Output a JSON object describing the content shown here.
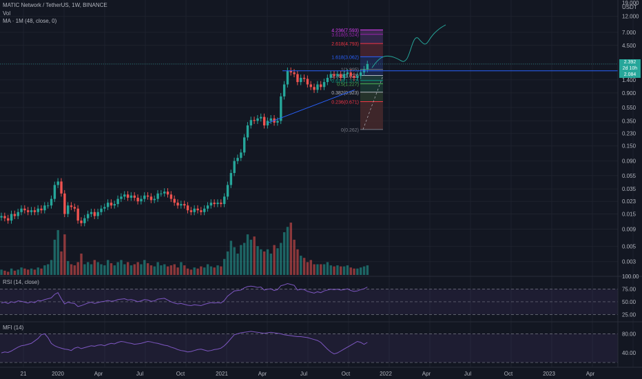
{
  "header": {
    "symbol_line": "MATIC Network / TetherUS, 1W, BINANCE",
    "vol_label": "Vol",
    "ma_label": "MA · 1M (48, close, 0)"
  },
  "price_axis": {
    "currency": "USDT",
    "ticks": [
      "19.000",
      "12.000",
      "7.000",
      "4.500",
      "2.392",
      "1.400",
      "0.900",
      "0.550",
      "0.350",
      "0.230",
      "0.150",
      "0.090",
      "0.055",
      "0.035",
      "0.023",
      "0.015",
      "0.009",
      "0.005",
      "0.003"
    ],
    "last_price": "2.392",
    "countdown": "2d 10h",
    "ma_price": "2.084"
  },
  "time_axis": {
    "labels": [
      "21",
      "2020",
      "Apr",
      "Jul",
      "Oct",
      "2021",
      "Apr",
      "Jul",
      "Oct",
      "2022",
      "Apr",
      "Jul",
      "Oct",
      "2023",
      "Apr"
    ]
  },
  "fib_levels": [
    {
      "label": "4.236(7.593)",
      "color": "#e040fb"
    },
    {
      "label": "3.618(6.524)",
      "color": "#9c27b0"
    },
    {
      "label": "2.618(4.793)",
      "color": "#f23645"
    },
    {
      "label": "1.618(3.062)",
      "color": "#2962ff"
    },
    {
      "label": "1(1.995)",
      "color": "#787b86"
    },
    {
      "label": "0.786(1.623)",
      "color": "#b2b5be"
    },
    {
      "label": "0.618(1.372)",
      "color": "#089981"
    },
    {
      "label": "0.5(1.227)",
      "color": "#4caf50"
    },
    {
      "label": "0.382(0.923)",
      "color": "#b2b5be"
    },
    {
      "label": "0.236(0.671)",
      "color": "#f23645"
    },
    {
      "label": "0(0.262)",
      "color": "#787b86"
    }
  ],
  "rsi": {
    "label": "RSI (14, close)",
    "ticks": [
      "100.00",
      "75.00",
      "50.00",
      "25.00"
    ]
  },
  "mfi": {
    "label": "MFI (14)",
    "ticks": [
      "80.00",
      "40.00"
    ]
  },
  "chart_data": {
    "type": "candlestick",
    "title": "MATIC Network / TetherUS, 1W, BINANCE",
    "scale": "log",
    "ylim": [
      0.002,
      19
    ],
    "colors": {
      "up": "#26a69a",
      "down": "#ef5350",
      "fib_blue": "#2962ff",
      "rsi": "#7e57c2"
    },
    "close": [
      0.014,
      0.013,
      0.012,
      0.015,
      0.014,
      0.016,
      0.018,
      0.017,
      0.016,
      0.017,
      0.016,
      0.018,
      0.017,
      0.02,
      0.02,
      0.025,
      0.04,
      0.045,
      0.03,
      0.015,
      0.02,
      0.019,
      0.018,
      0.012,
      0.011,
      0.013,
      0.015,
      0.016,
      0.014,
      0.016,
      0.018,
      0.019,
      0.022,
      0.02,
      0.021,
      0.025,
      0.027,
      0.029,
      0.026,
      0.028,
      0.026,
      0.023,
      0.025,
      0.028,
      0.027,
      0.024,
      0.025,
      0.03,
      0.03,
      0.032,
      0.029,
      0.025,
      0.022,
      0.02,
      0.021,
      0.02,
      0.017,
      0.016,
      0.018,
      0.017,
      0.016,
      0.018,
      0.02,
      0.022,
      0.021,
      0.022,
      0.021,
      0.027,
      0.04,
      0.06,
      0.09,
      0.1,
      0.12,
      0.2,
      0.3,
      0.36,
      0.35,
      0.38,
      0.4,
      0.3,
      0.35,
      0.38,
      0.33,
      0.35,
      0.8,
      1.2,
      1.9,
      1.8,
      1.7,
      1.3,
      1.5,
      1.45,
      1.2,
      1.1,
      1.0,
      1.2,
      1.1,
      1.3,
      1.5,
      1.7,
      1.6,
      1.7,
      1.5,
      1.7,
      1.8,
      1.6,
      1.5,
      1.6,
      1.8,
      2.0,
      2.39
    ],
    "volume": [
      5,
      4,
      3,
      6,
      4,
      5,
      7,
      6,
      5,
      6,
      5,
      7,
      6,
      9,
      10,
      14,
      33,
      42,
      22,
      38,
      13,
      10,
      9,
      12,
      20,
      10,
      12,
      10,
      14,
      12,
      10,
      9,
      14,
      11,
      9,
      12,
      14,
      10,
      12,
      9,
      10,
      12,
      10,
      14,
      11,
      9,
      8,
      12,
      9,
      10,
      8,
      9,
      10,
      7,
      12,
      9,
      6,
      5,
      7,
      6,
      8,
      7,
      10,
      8,
      7,
      9,
      8,
      15,
      22,
      32,
      26,
      20,
      28,
      30,
      38,
      33,
      36,
      27,
      24,
      22,
      24,
      20,
      28,
      25,
      30,
      40,
      45,
      49,
      33,
      24,
      18,
      16,
      12,
      14,
      10,
      10,
      10,
      10,
      12,
      9,
      8,
      9,
      8,
      8,
      9,
      7,
      6,
      6,
      7,
      8,
      9
    ],
    "rsi": [
      50,
      52,
      49,
      53,
      51,
      55,
      54,
      52,
      50,
      53,
      51,
      56,
      55,
      58,
      60,
      62,
      70,
      74,
      60,
      48,
      52,
      50,
      49,
      42,
      44,
      47,
      50,
      52,
      49,
      51,
      53,
      54,
      56,
      54,
      55,
      58,
      59,
      60,
      57,
      58,
      56,
      53,
      55,
      58,
      57,
      54,
      55,
      59,
      60,
      61,
      57,
      53,
      50,
      48,
      49,
      47,
      45,
      44,
      46,
      45,
      44,
      47,
      49,
      51,
      50,
      51,
      50,
      56,
      66,
      72,
      78,
      79,
      80,
      85,
      88,
      89,
      88,
      86,
      87,
      80,
      82,
      83,
      79,
      81,
      90,
      92,
      95,
      93,
      91,
      80,
      82,
      81,
      77,
      75,
      73,
      76,
      74,
      78,
      80,
      82,
      81,
      82,
      80,
      81,
      83,
      79,
      77,
      78,
      81,
      83,
      87
    ],
    "mfi": [
      40,
      42,
      41,
      44,
      48,
      52,
      55,
      56,
      58,
      60,
      65,
      70,
      78,
      80,
      72,
      60,
      55,
      52,
      50,
      48,
      47,
      45,
      50,
      52,
      49,
      51,
      53,
      55,
      54,
      56,
      57,
      55,
      58,
      60,
      59,
      62,
      64,
      63,
      61,
      60,
      58,
      59,
      60,
      62,
      64,
      63,
      61,
      60,
      58,
      56,
      55,
      52,
      50,
      47,
      45,
      44,
      42,
      43,
      45,
      47,
      48,
      46,
      44,
      45,
      47,
      48,
      50,
      55,
      62,
      70,
      78,
      80,
      82,
      83,
      84,
      85,
      84,
      83,
      82,
      81,
      82,
      83,
      82,
      81,
      80,
      78,
      77,
      76,
      75,
      74,
      74,
      73,
      72,
      70,
      68,
      66,
      62,
      55,
      48,
      42,
      38,
      40,
      44,
      48,
      52,
      56,
      60,
      64,
      62,
      58,
      62
    ]
  }
}
